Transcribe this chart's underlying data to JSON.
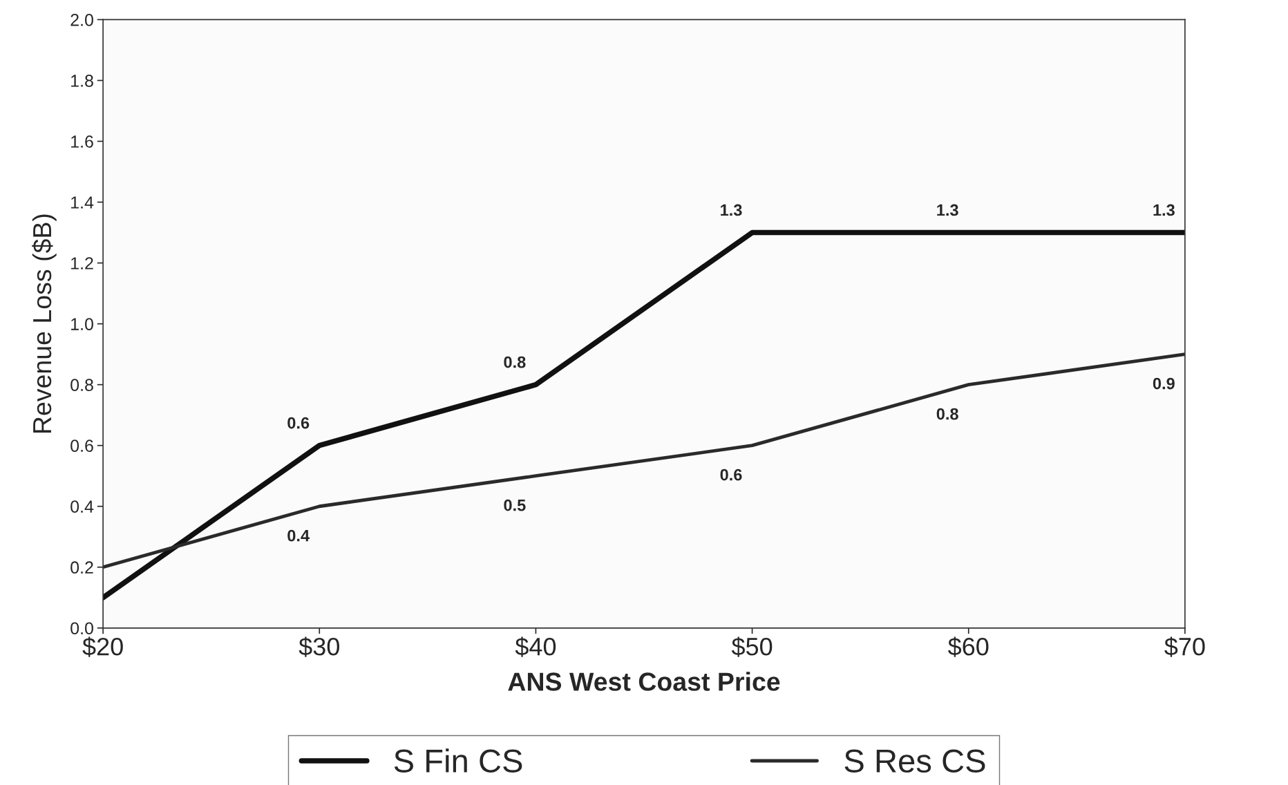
{
  "chart_data": {
    "type": "line",
    "xlabel": "ANS West Coast Price",
    "ylabel": "Revenue Loss ($B)",
    "x": [
      20,
      30,
      40,
      50,
      60,
      70
    ],
    "xlim": [
      20,
      70
    ],
    "xticks": [
      {
        "value": 20,
        "label": "$20"
      },
      {
        "value": 30,
        "label": "$30"
      },
      {
        "value": 40,
        "label": "$40"
      },
      {
        "value": 50,
        "label": "$50"
      },
      {
        "value": 60,
        "label": "$60"
      },
      {
        "value": 70,
        "label": "$70"
      }
    ],
    "ylim": [
      0,
      2
    ],
    "yticks": [
      {
        "value": 0,
        "label": "0.0"
      },
      {
        "value": 0.2,
        "label": "0.2"
      },
      {
        "value": 0.4,
        "label": "0.4"
      },
      {
        "value": 0.6,
        "label": "0.6"
      },
      {
        "value": 0.8,
        "label": "0.8"
      },
      {
        "value": 1,
        "label": "1.0"
      },
      {
        "value": 1.2,
        "label": "1.2"
      },
      {
        "value": 1.4,
        "label": "1.4"
      },
      {
        "value": 1.6,
        "label": "1.6"
      },
      {
        "value": 1.8,
        "label": "1.8"
      },
      {
        "value": 2,
        "label": "2.0"
      }
    ],
    "series": [
      {
        "name": "S Fin CS",
        "color": "#111111",
        "values": [
          0.1,
          0.6,
          0.8,
          1.3,
          1.3,
          1.3
        ],
        "value_labels": [
          null,
          "0.6",
          "0.8",
          "1.3",
          "1.3",
          "1.3"
        ]
      },
      {
        "name": "S Res CS",
        "color": "#2a2a2a",
        "values": [
          0.2,
          0.4,
          0.5,
          0.6,
          0.8,
          0.9
        ],
        "value_labels": [
          null,
          "0.4",
          "0.5",
          "0.6",
          "0.8",
          "0.9"
        ]
      }
    ],
    "legend": "bottom",
    "grid": false,
    "marker": "none",
    "line_style": "solid"
  }
}
